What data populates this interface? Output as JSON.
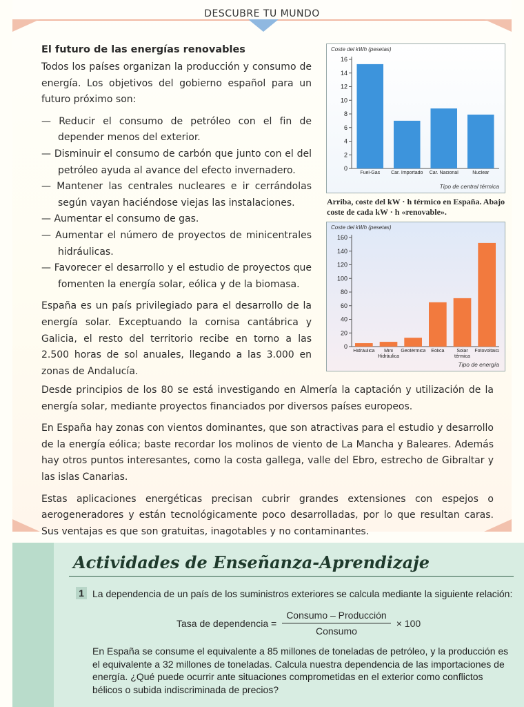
{
  "header": {
    "title": "DESCUBRE TU MUNDO"
  },
  "article": {
    "title": "El futuro de las energías renovables",
    "intro": "Todos los países organizan la producción y consumo de energía. Los objetivos del gobierno español para un futuro próximo son:",
    "items": [
      "— Reducir el consumo de petróleo con el fin de depender menos del exterior.",
      "— Disminuir el consumo de carbón que junto con el del petróleo ayuda al avance del efecto invernadero.",
      "— Mantener las centrales nucleares e ir cerrándolas según vayan haciéndose viejas las instalaciones.",
      "— Aumentar el consumo de gas.",
      "— Aumentar el número de proyectos de minicentrales hidráulicas.",
      "— Favorecer el desarrollo y el estudio de proyectos que fomenten la energía solar, eólica y de la biomasa."
    ],
    "paragraphs": [
      "España es un país privilegiado para el desarrollo de la energía solar. Exceptuando la cornisa cantábrica y Galicia, el resto del territorio recibe en torno a las 2.500 horas de sol anuales, llegando a las 3.000 en zonas de Andalucía.",
      "Desde principios de los 80 se está investigando en Almería la captación y utilización de la energía solar, mediante proyectos financiados por diversos países europeos.",
      "En España hay zonas con vientos dominantes, que son atractivas para el estudio y desarrollo de la energía eólica; baste recordar los molinos de viento de La Mancha y Baleares. Además hay otros puntos interesantes, como la costa gallega, valle del Ebro, estrecho de Gibraltar y las islas Canarias.",
      "Estas aplicaciones energéticas precisan cubrir grandes extensiones con espejos o aerogeneradores y están tecnológicamente poco desarrolladas, por lo que resultan caras. Sus ventajas es que son gratuitas, inagotables y no contaminantes."
    ]
  },
  "chart_data": [
    {
      "type": "bar",
      "y_label": "Coste del kWh (pesetas)",
      "x_label": "Tipo de central térmica",
      "categories": [
        "Fuel-Gas",
        "Car. Importado",
        "Car. Nacional",
        "Nuclear"
      ],
      "values": [
        15.3,
        7.0,
        8.8,
        7.9
      ],
      "color": "#3d94dc",
      "ylim": [
        0,
        16
      ],
      "yticks": [
        0,
        2,
        4,
        6,
        8,
        10,
        12,
        14,
        16
      ]
    },
    {
      "type": "bar",
      "y_label": "Coste del kWh (pesetas)",
      "x_label": "Tipo de energía",
      "categories": [
        "Hidráulica",
        "Mini Hidráulica",
        "Geotérmica",
        "Eólica",
        "Solar térmica",
        "Fotovoltaica"
      ],
      "values": [
        5,
        7,
        13,
        65,
        71,
        152
      ],
      "color": "#f27a3e",
      "ylim": [
        0,
        160
      ],
      "yticks": [
        0,
        20,
        40,
        60,
        80,
        100,
        120,
        140,
        160
      ]
    }
  ],
  "caption": "Arriba, coste del kW · h térmico en España. Abajo coste de cada kW · h «renovable».",
  "activities": {
    "title": "Actividades de Enseñanza-Aprendizaje",
    "number": "1",
    "statement": "La dependencia de un país de los suministros exteriores se calcula mediante la siguiente relación:",
    "formula": {
      "lhs": "Tasa de dependencia =",
      "numerator": "Consumo – Producción",
      "denominator": "Consumo",
      "factor": "× 100"
    },
    "question": "En España se consume el equivalente a 85 millones de toneladas de petróleo, y la producción es el equivalente a 32 millones de toneladas. Calcula nuestra dependencia de las importaciones de energía. ¿Qué puede ocurrir ante situaciones comprometidas en el exterior como conflictos bélicos o subida indiscriminada de precios?"
  }
}
